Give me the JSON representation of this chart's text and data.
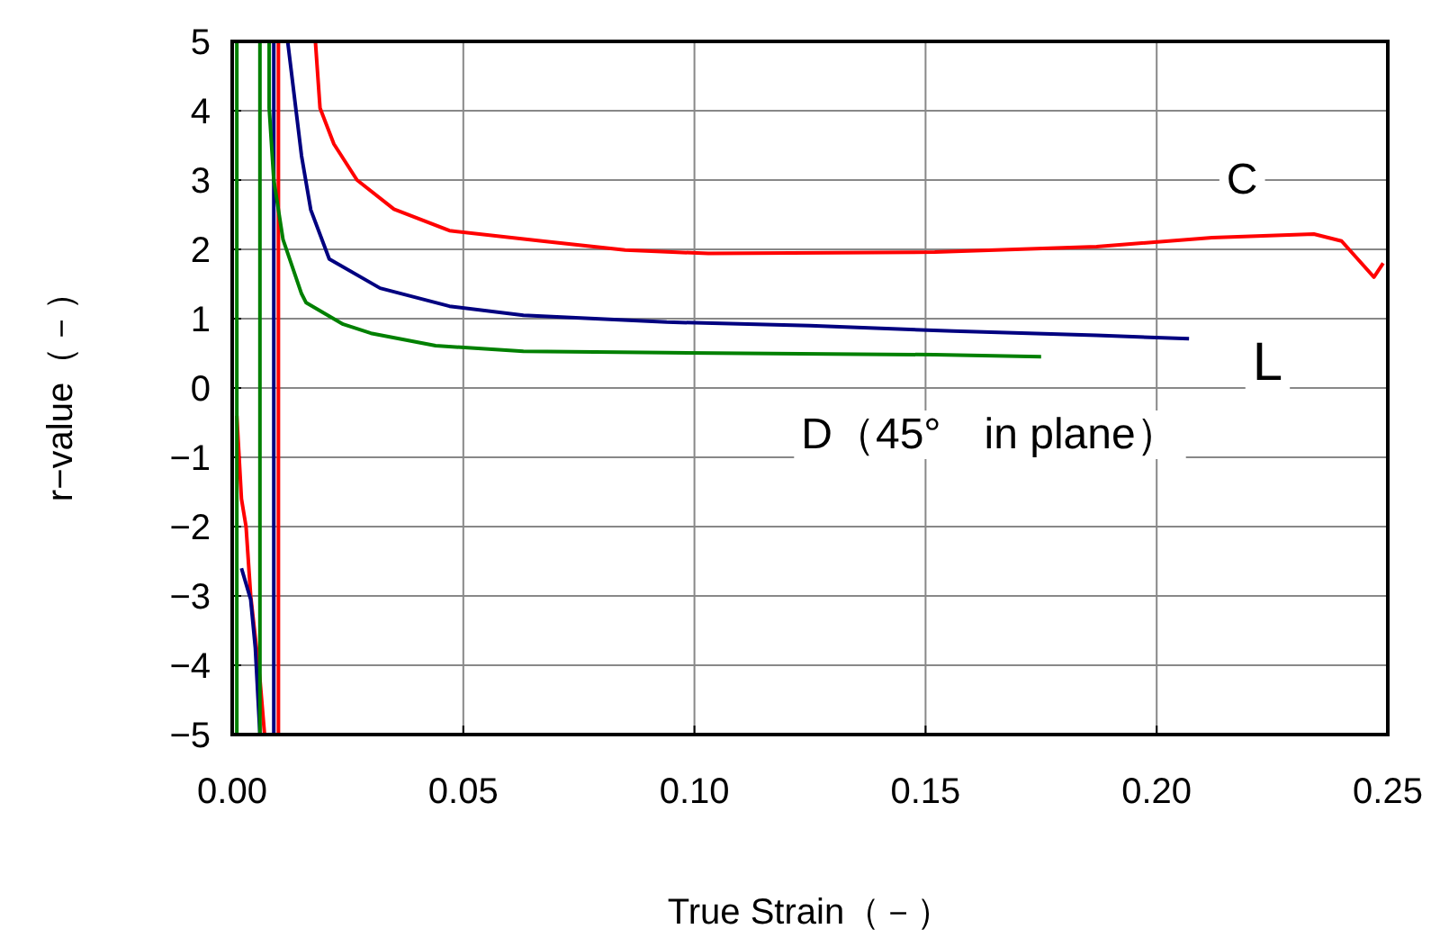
{
  "chart_data": {
    "type": "line",
    "xlabel": "True Strain（－）",
    "ylabel": "r−value（－）",
    "xlim": [
      0,
      0.25
    ],
    "ylim": [
      -5,
      5
    ],
    "xticks": [
      {
        "value": 0,
        "label": "0.00"
      },
      {
        "value": 0.05,
        "label": "0.05"
      },
      {
        "value": 0.1,
        "label": "0.10"
      },
      {
        "value": 0.15,
        "label": "0.15"
      },
      {
        "value": 0.2,
        "label": "0.20"
      },
      {
        "value": 0.25,
        "label": "0.25"
      }
    ],
    "yticks": [
      -5,
      -4,
      -3,
      -2,
      -1,
      0,
      1,
      2,
      3,
      4,
      5
    ],
    "grid": true,
    "line_style": "solid",
    "series": [
      {
        "color": "#ff0000",
        "x": [
          0.001,
          0.002,
          0.003,
          0.004,
          0.006,
          0.007
        ],
        "values": [
          -0.4,
          -1.6,
          -2.0,
          -3.0,
          -4.2,
          -5
        ]
      },
      {
        "color": "#ff0000",
        "x": [
          0.01,
          0.01
        ],
        "values": [
          -5,
          5
        ]
      },
      {
        "color": "#ff0000",
        "x": [
          0.018,
          0.019,
          0.022,
          0.027,
          0.035,
          0.047,
          0.067,
          0.085,
          0.103,
          0.152,
          0.187,
          0.212,
          0.234,
          0.24,
          0.247,
          0.249
        ],
        "values": [
          5,
          4.04,
          3.52,
          3.0,
          2.58,
          2.27,
          2.12,
          1.99,
          1.94,
          1.96,
          2.04,
          2.17,
          2.22,
          2.12,
          1.6,
          1.8
        ]
      },
      {
        "color": "#000080",
        "x": [
          0.002,
          0.004,
          0.005,
          0.006
        ],
        "values": [
          -2.6,
          -3.05,
          -3.75,
          -5
        ]
      },
      {
        "color": "#000080",
        "x": [
          0.009,
          0.009
        ],
        "values": [
          -5,
          5
        ]
      },
      {
        "color": "#000080",
        "x": [
          0.012,
          0.015,
          0.017,
          0.021,
          0.032,
          0.047,
          0.063,
          0.094,
          0.125,
          0.156,
          0.187,
          0.207
        ],
        "values": [
          5,
          3.35,
          2.57,
          1.86,
          1.44,
          1.18,
          1.05,
          0.95,
          0.9,
          0.82,
          0.76,
          0.71
        ]
      },
      {
        "color": "#008000",
        "x": [
          0.001,
          0.001
        ],
        "values": [
          -5,
          5
        ]
      },
      {
        "color": "#008000",
        "x": [
          0.006,
          0.006
        ],
        "values": [
          -5,
          5
        ]
      },
      {
        "color": "#008000",
        "x": [
          0.008,
          0.008,
          0.009,
          0.011,
          0.015,
          0.016,
          0.024,
          0.03,
          0.044,
          0.063,
          0.094,
          0.152,
          0.175
        ],
        "values": [
          5,
          4.04,
          3.0,
          2.14,
          1.36,
          1.23,
          0.92,
          0.79,
          0.61,
          0.53,
          0.51,
          0.48,
          0.45
        ]
      }
    ],
    "annotations": [
      {
        "text": "C",
        "x": 0.2185,
        "y": 3.03
      },
      {
        "text": "L",
        "x": 0.224,
        "y": 0.4
      },
      "D（45°　in plane）"
    ]
  }
}
